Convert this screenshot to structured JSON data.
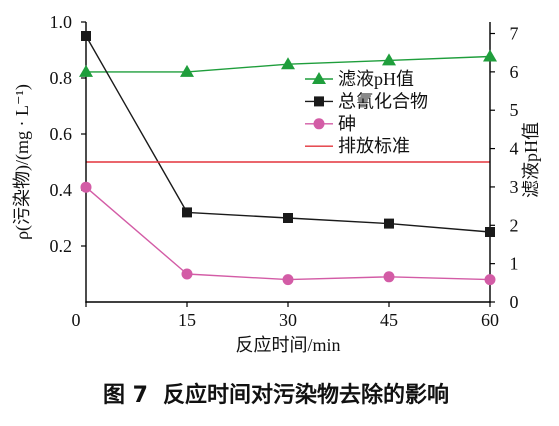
{
  "figure": {
    "label": "图 7",
    "caption": "反应时间对污染物去除的影响"
  },
  "chart_data": {
    "type": "line",
    "xlabel": "反应时间/min",
    "ylabel": "ρ(污染物)/(mg · L⁻¹)",
    "y2label": "滤液pH值",
    "xlim": [
      0,
      60
    ],
    "ylim": [
      0,
      1.0
    ],
    "y2lim": [
      0,
      7.3
    ],
    "x_ticks": [
      0,
      15,
      30,
      45,
      60
    ],
    "x_tick_labels": [
      "0",
      "15",
      "30",
      "45",
      "60"
    ],
    "y_ticks": [
      0.2,
      0.4,
      0.6,
      0.8,
      1.0
    ],
    "y_tick_labels": [
      "0.2",
      "0.4",
      "0.6",
      "0.8",
      "1.0"
    ],
    "y2_ticks": [
      0,
      1,
      2,
      3,
      4,
      5,
      6,
      7
    ],
    "y2_tick_labels": [
      "0",
      "1",
      "2",
      "3",
      "4",
      "5",
      "6",
      "7"
    ],
    "grid": false,
    "legend_position": "top-right",
    "x": [
      0,
      15,
      30,
      45,
      60
    ],
    "series": [
      {
        "name": "滤液pH值",
        "secondary_axis": true,
        "marker": "triangle",
        "color": "#1f9e3c",
        "values": [
          6.0,
          6.0,
          6.2,
          6.3,
          6.4
        ]
      },
      {
        "name": "总氰化合物",
        "secondary_axis": false,
        "marker": "square",
        "color": "#1a1a1a",
        "values": [
          0.95,
          0.32,
          0.3,
          0.28,
          0.25
        ]
      },
      {
        "name": "砷",
        "secondary_axis": false,
        "marker": "circle",
        "color": "#d35ca6",
        "values": [
          0.41,
          0.1,
          0.08,
          0.09,
          0.08
        ]
      },
      {
        "name": "排放标准",
        "secondary_axis": false,
        "color": "#e3343c",
        "values": [
          0.5,
          0.5,
          0.5,
          0.5,
          0.5
        ]
      }
    ]
  }
}
